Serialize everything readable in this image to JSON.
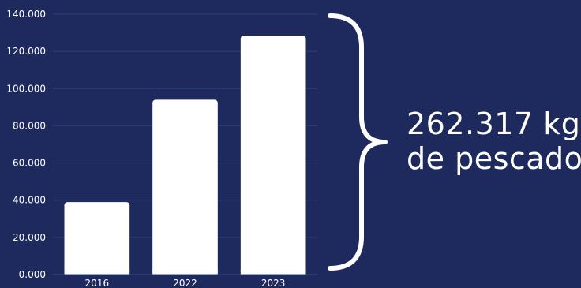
{
  "chart_data": {
    "type": "bar",
    "categories": [
      "2016",
      "2022",
      "2023"
    ],
    "values": [
      39000,
      94000,
      128500
    ],
    "yticks": [
      "0.000",
      "20.000",
      "40.000",
      "60.000",
      "80.000",
      "100.000",
      "120.000",
      "140.000"
    ],
    "ylim": [
      0,
      140000
    ],
    "grid": true,
    "annotation": {
      "line1": "262.317 kg",
      "line2": "de pescado"
    },
    "colors": {
      "background": "#1e2a5e",
      "bar": "#ffffff",
      "grid": "#2e3d78",
      "text": "#ffffff"
    }
  }
}
